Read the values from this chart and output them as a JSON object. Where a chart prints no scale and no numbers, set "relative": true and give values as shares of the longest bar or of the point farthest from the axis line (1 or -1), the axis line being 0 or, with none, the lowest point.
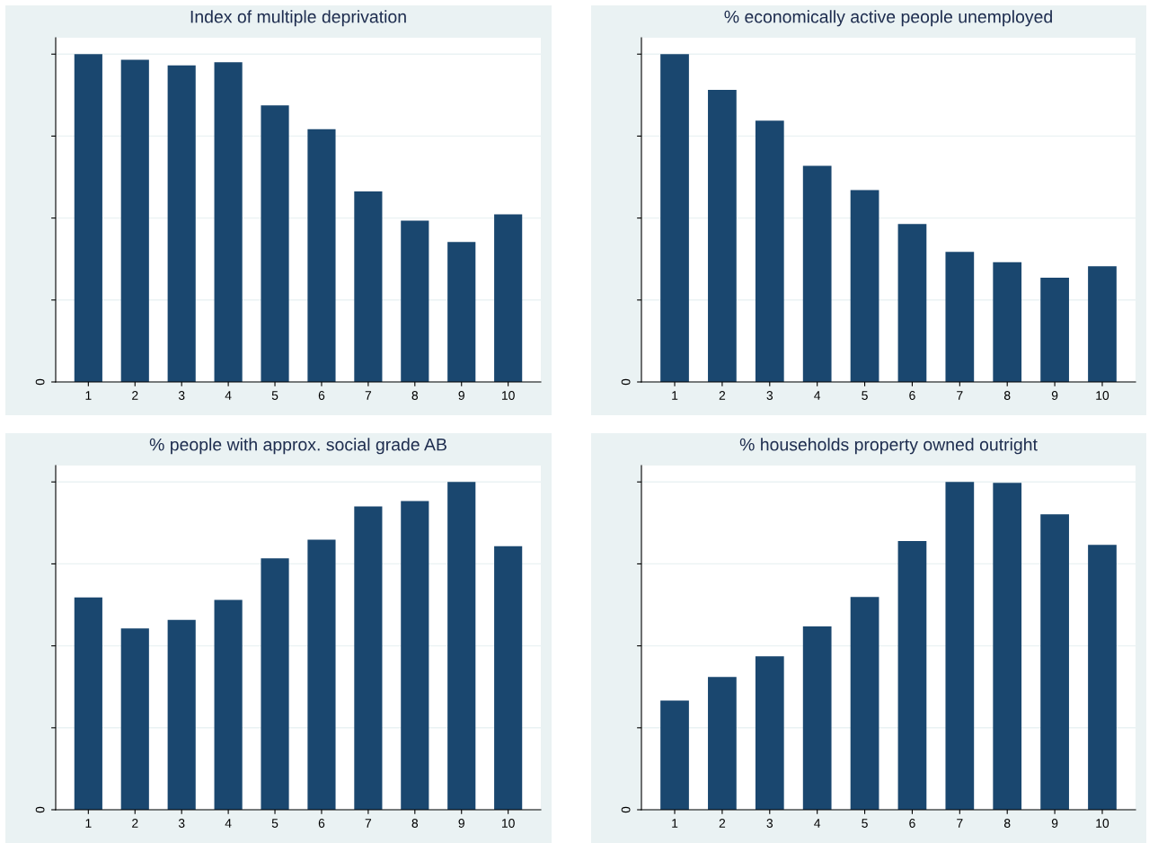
{
  "chart_data": [
    {
      "type": "bar",
      "title": "Index of multiple deprivation",
      "categories": [
        "1",
        "2",
        "3",
        "4",
        "5",
        "6",
        "7",
        "8",
        "9",
        "10"
      ],
      "relative": true,
      "grid": "y",
      "annotations": [
        "0"
      ],
      "series": [
        {
          "color": "#1a476f",
          "values": [
            1,
            0.983,
            0.966,
            0.975,
            0.844,
            0.771,
            0.581,
            0.492,
            0.427,
            0.511
          ]
        }
      ]
    },
    {
      "type": "bar",
      "title": "% economically active people unemployed",
      "categories": [
        "1",
        "2",
        "3",
        "4",
        "5",
        "6",
        "7",
        "8",
        "9",
        "10"
      ],
      "relative": true,
      "grid": "y",
      "annotations": [
        "0"
      ],
      "series": [
        {
          "color": "#1a476f",
          "values": [
            1,
            0.891,
            0.797,
            0.659,
            0.585,
            0.482,
            0.397,
            0.365,
            0.318,
            0.353
          ]
        }
      ]
    },
    {
      "type": "bar",
      "title": "% people with approx. social grade AB",
      "categories": [
        "1",
        "2",
        "3",
        "4",
        "5",
        "6",
        "7",
        "8",
        "9",
        "10"
      ],
      "relative": true,
      "grid": "y",
      "annotations": [
        "0"
      ],
      "series": [
        {
          "color": "#1a476f",
          "values": [
            0.648,
            0.553,
            0.579,
            0.64,
            0.767,
            0.824,
            0.925,
            0.942,
            1,
            0.804
          ]
        }
      ]
    },
    {
      "type": "bar",
      "title": "% households property owned outright",
      "categories": [
        "1",
        "2",
        "3",
        "4",
        "5",
        "6",
        "7",
        "8",
        "9",
        "10"
      ],
      "relative": true,
      "grid": "y",
      "annotations": [
        "0"
      ],
      "series": [
        {
          "color": "#1a476f",
          "values": [
            0.333,
            0.405,
            0.468,
            0.559,
            0.649,
            0.82,
            1,
            0.997,
            0.901,
            0.808
          ]
        }
      ]
    }
  ]
}
